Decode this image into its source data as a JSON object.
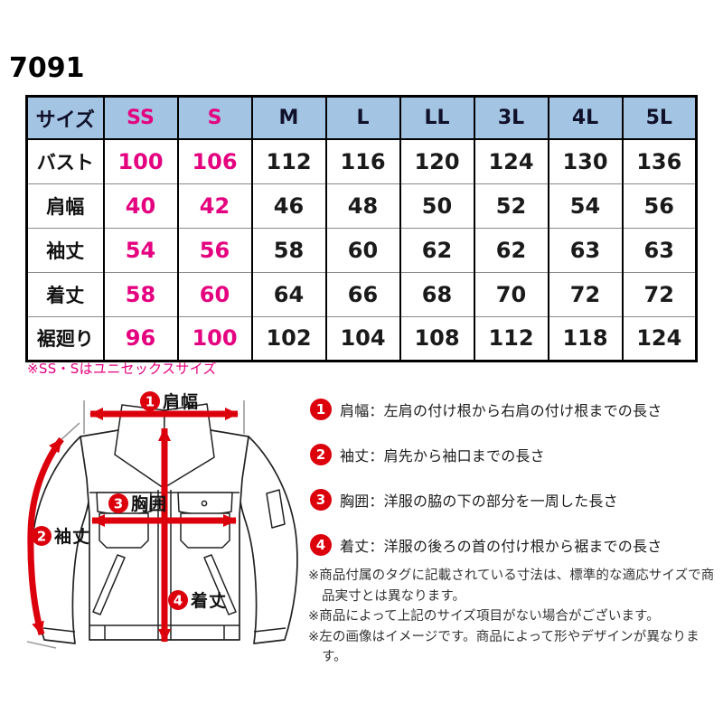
{
  "page": {
    "product_code": "7091"
  },
  "colors": {
    "header_blue": "#a3c4e2",
    "accent_pink": "#e4007f",
    "accent_red": "#dc000c",
    "border_dark": "#000000",
    "border_gray": "#8a8a8a"
  },
  "size_table": {
    "header": [
      "サイズ",
      "SS",
      "S",
      "M",
      "L",
      "LL",
      "3L",
      "4L",
      "5L"
    ],
    "pink_size_columns": [
      "SS",
      "S"
    ],
    "rows": [
      {
        "label": "バスト",
        "values": [
          100,
          106,
          112,
          116,
          120,
          124,
          130,
          136
        ]
      },
      {
        "label": "肩幅",
        "values": [
          40,
          42,
          46,
          48,
          50,
          52,
          54,
          56
        ]
      },
      {
        "label": "袖丈",
        "values": [
          54,
          56,
          58,
          60,
          62,
          62,
          63,
          63
        ]
      },
      {
        "label": "着丈",
        "values": [
          58,
          60,
          64,
          66,
          68,
          70,
          72,
          72
        ]
      },
      {
        "label": "裾廻り",
        "values": [
          96,
          100,
          102,
          104,
          108,
          112,
          118,
          124
        ]
      }
    ],
    "unisex_note": "※SS・Sはユニセックスサイズ"
  },
  "diagram": {
    "labels": [
      {
        "num": "1",
        "text": "肩幅"
      },
      {
        "num": "2",
        "text": "袖丈"
      },
      {
        "num": "3",
        "text": "胸囲"
      },
      {
        "num": "4",
        "text": "着丈"
      }
    ]
  },
  "legend": {
    "items": [
      {
        "num": "1",
        "text": "肩幅：左肩の付け根から右肩の付け根までの長さ"
      },
      {
        "num": "2",
        "text": "袖丈：肩先から袖口までの長さ"
      },
      {
        "num": "3",
        "text": "胸囲：洋服の脇の下の部分を一周した長さ"
      },
      {
        "num": "4",
        "text": "着丈：洋服の後ろの首の付け根から裾までの長さ"
      }
    ],
    "notes": [
      "※商品付属のタグに記載されている寸法は、標準的な適応サイズで商品実寸とは異なります。",
      "※商品によって上記のサイズ項目がない場合がございます。",
      "※左の画像はイメージです。商品によって形やデザインが異なります。"
    ]
  }
}
